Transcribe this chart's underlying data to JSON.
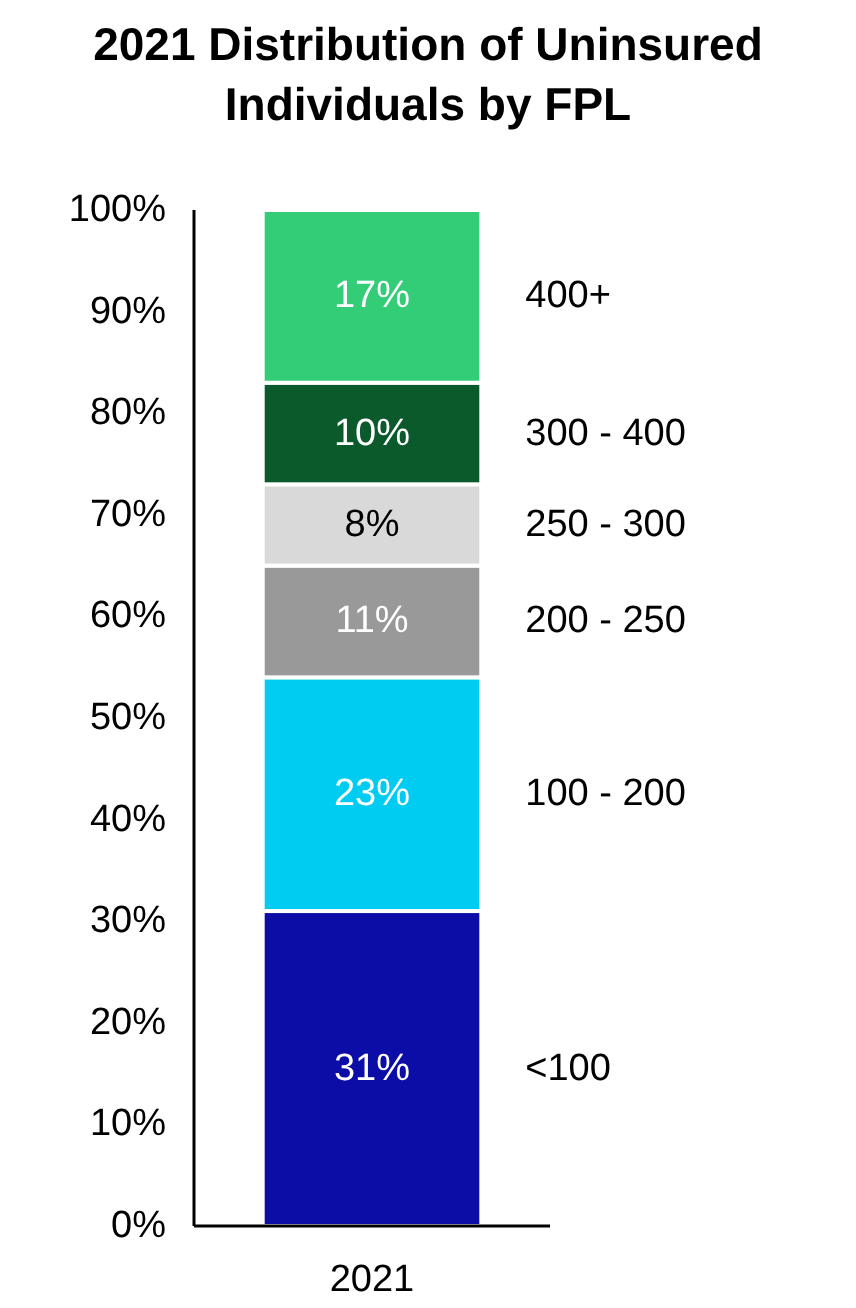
{
  "chart_data": {
    "type": "bar",
    "title": "2021 Distribution of Uninsured Individuals by FPL",
    "categories": [
      "2021"
    ],
    "stacked": true,
    "series": [
      {
        "name": "<100",
        "color": "#0c0ca6",
        "values": [
          31
        ],
        "value_labels": [
          "31%"
        ]
      },
      {
        "name": "100 - 200",
        "color": "#00ccf2",
        "values": [
          23
        ],
        "value_labels": [
          "23%"
        ]
      },
      {
        "name": "200 - 250",
        "color": "#999999",
        "values": [
          11
        ],
        "value_labels": [
          "11%"
        ]
      },
      {
        "name": "250 - 300",
        "color": "#d9d9d9",
        "values": [
          8
        ],
        "value_labels": [
          "8%"
        ]
      },
      {
        "name": "300 - 400",
        "color": "#0b5a2b",
        "values": [
          10
        ],
        "value_labels": [
          "10%"
        ]
      },
      {
        "name": "400+",
        "color": "#33cc77",
        "values": [
          17
        ],
        "value_labels": [
          "17%"
        ]
      }
    ],
    "ylim": [
      0,
      100
    ],
    "yticks": [
      {
        "value": 0,
        "label": "0%"
      },
      {
        "value": 10,
        "label": "10%"
      },
      {
        "value": 20,
        "label": "20%"
      },
      {
        "value": 30,
        "label": "30%"
      },
      {
        "value": 40,
        "label": "40%"
      },
      {
        "value": 50,
        "label": "50%"
      },
      {
        "value": 60,
        "label": "60%"
      },
      {
        "value": 70,
        "label": "70%"
      },
      {
        "value": 80,
        "label": "80%"
      },
      {
        "value": 90,
        "label": "90%"
      },
      {
        "value": 100,
        "label": "100%"
      }
    ],
    "grid": false
  }
}
